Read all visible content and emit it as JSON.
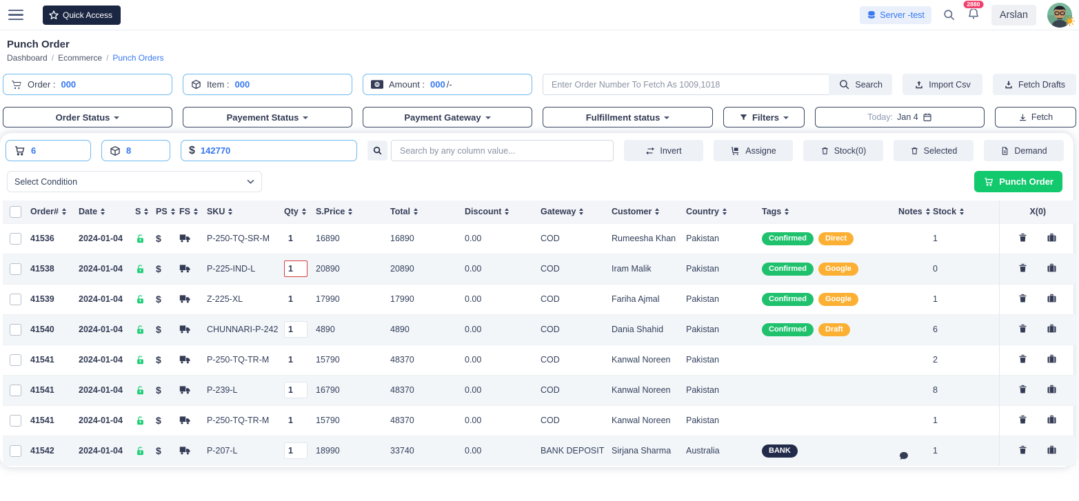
{
  "topbar": {
    "quick_access": "Quick Access",
    "server_chip": "Server -test",
    "notification_count": "2880",
    "user_name": "Arslan"
  },
  "page": {
    "title": "Punch Order",
    "breadcrumb": {
      "first": "Dashboard",
      "second": "Ecommerce",
      "current": "Punch Orders",
      "separator": "/"
    }
  },
  "stats": {
    "order_label": "Order :",
    "order_value": "000",
    "item_label": "Item :",
    "item_value": "000",
    "amount_label": "Amount :",
    "amount_value": "000",
    "amount_suffix": "/-",
    "fetch_input_placeholder": "Enter Order Number To Fetch As 1009,1018",
    "search_button": "Search",
    "import_csv_button": "Import Csv",
    "fetch_drafts_button": "Fetch Drafts"
  },
  "filters": {
    "order_status": "Order Status",
    "payment_status": "Payement Status",
    "payment_gateway": "Payment Gateway",
    "fulfillment_status": "Fulfillment status",
    "filters_button": "Filters",
    "date_label": "Today:",
    "date_value": "Jan 4",
    "fetch_button": "Fetch"
  },
  "toolbar": {
    "cart_count": "6",
    "item_count": "8",
    "amount_total": "142770",
    "search_placeholder": "Search by any column value...",
    "invert_button": "Invert",
    "assign_button": "Assigne",
    "stock_button": "Stock(0)",
    "selected_button": "Selected",
    "demand_button": "Demand",
    "condition_select": "Select Condition",
    "punch_order_button": "Punch Order"
  },
  "table": {
    "columns": [
      {
        "label": "Order#",
        "sortable": true
      },
      {
        "label": "Date",
        "sortable": true
      },
      {
        "label": "S",
        "sortable": true
      },
      {
        "label": "PS",
        "sortable": true
      },
      {
        "label": "FS",
        "sortable": true
      },
      {
        "label": "SKU",
        "sortable": true
      },
      {
        "label": "Qty",
        "sortable": true
      },
      {
        "label": "S.Price",
        "sortable": true
      },
      {
        "label": "Total",
        "sortable": true
      },
      {
        "label": "Discount",
        "sortable": true
      },
      {
        "label": "Gateway",
        "sortable": true
      },
      {
        "label": "Customer",
        "sortable": true
      },
      {
        "label": "Country",
        "sortable": true
      },
      {
        "label": "Tags",
        "sortable": true
      },
      {
        "label": "Notes",
        "sortable": true
      },
      {
        "label": "Stock",
        "sortable": true
      },
      {
        "label": "X(0)",
        "sortable": false
      }
    ],
    "rows": [
      {
        "order": "41536",
        "date": "2024-01-04",
        "sku": "P-250-TQ-SR-M",
        "qty": "1",
        "qty_style": "plain",
        "price": "16890",
        "total": "16890",
        "discount": "0.00",
        "gateway": "COD",
        "customer": "Rumeesha Khan",
        "country": "Pakistan",
        "tags": [
          {
            "label": "Confirmed",
            "color": "green"
          },
          {
            "label": "Direct",
            "color": "orange"
          }
        ],
        "has_note": false,
        "stock": "1"
      },
      {
        "order": "41538",
        "date": "2024-01-04",
        "sku": "P-225-IND-L",
        "qty": "1",
        "qty_style": "alert",
        "price": "20890",
        "total": "20890",
        "discount": "0.00",
        "gateway": "COD",
        "customer": "Iram Malik",
        "country": "Pakistan",
        "tags": [
          {
            "label": "Confirmed",
            "color": "green"
          },
          {
            "label": "Google",
            "color": "orange"
          }
        ],
        "has_note": false,
        "stock": "0"
      },
      {
        "order": "41539",
        "date": "2024-01-04",
        "sku": "Z-225-XL",
        "qty": "1",
        "qty_style": "plain",
        "price": "17990",
        "total": "17990",
        "discount": "0.00",
        "gateway": "COD",
        "customer": "Fariha Ajmal",
        "country": "Pakistan",
        "tags": [
          {
            "label": "Confirmed",
            "color": "green"
          },
          {
            "label": "Google",
            "color": "orange"
          }
        ],
        "has_note": false,
        "stock": "1"
      },
      {
        "order": "41540",
        "date": "2024-01-04",
        "sku": "CHUNNARI-P-242",
        "qty": "1",
        "qty_style": "boxed",
        "price": "4890",
        "total": "4890",
        "discount": "0.00",
        "gateway": "COD",
        "customer": "Dania Shahid",
        "country": "Pakistan",
        "tags": [
          {
            "label": "Confirmed",
            "color": "green"
          },
          {
            "label": "Draft",
            "color": "orange"
          }
        ],
        "has_note": false,
        "stock": "6"
      },
      {
        "order": "41541",
        "date": "2024-01-04",
        "sku": "P-250-TQ-TR-M",
        "qty": "1",
        "qty_style": "plain",
        "price": "15790",
        "total": "48370",
        "discount": "0.00",
        "gateway": "COD",
        "customer": "Kanwal Noreen",
        "country": "Pakistan",
        "tags": [],
        "has_note": false,
        "stock": "2"
      },
      {
        "order": "41541",
        "date": "2024-01-04",
        "sku": "P-239-L",
        "qty": "1",
        "qty_style": "boxed",
        "price": "16790",
        "total": "48370",
        "discount": "0.00",
        "gateway": "COD",
        "customer": "Kanwal Noreen",
        "country": "Pakistan",
        "tags": [],
        "has_note": false,
        "stock": "8"
      },
      {
        "order": "41541",
        "date": "2024-01-04",
        "sku": "P-250-TQ-TR-M",
        "qty": "1",
        "qty_style": "plain",
        "price": "15790",
        "total": "48370",
        "discount": "0.00",
        "gateway": "COD",
        "customer": "Kanwal Noreen",
        "country": "Pakistan",
        "tags": [],
        "has_note": false,
        "stock": "1"
      },
      {
        "order": "41542",
        "date": "2024-01-04",
        "sku": "P-207-L",
        "qty": "1",
        "qty_style": "boxed",
        "price": "18990",
        "total": "33740",
        "discount": "0.00",
        "gateway": "BANK DEPOSIT",
        "customer": "Sirjana Sharma",
        "country": "Australia",
        "tags": [
          {
            "label": "BANK",
            "color": "dark"
          }
        ],
        "has_note": true,
        "stock": "1"
      }
    ]
  },
  "colors": {
    "accent-blue": "#3577f1",
    "navy": "#333b55",
    "green": "#12c96d",
    "tag-green": "#1fc16d",
    "tag-orange": "#fbb034",
    "tag-dark": "#222b49",
    "badge-pink": "#f1426d",
    "stat-border": "#6db9ef",
    "button-gray": "#eef1f6",
    "stripe": "#f3f6f9",
    "sun-orange": "#f6a821"
  }
}
